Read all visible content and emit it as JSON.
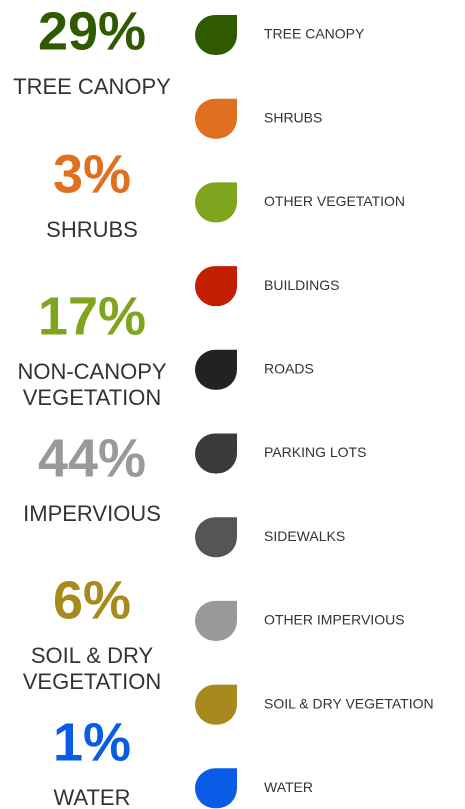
{
  "stats": [
    {
      "value": "29%",
      "label": [
        "TREE CANOPY"
      ],
      "color": "#2f5a00"
    },
    {
      "value": "3%",
      "label": [
        "SHRUBS"
      ],
      "color": "#e07020"
    },
    {
      "value": "17%",
      "label": [
        "NON-CANOPY",
        "VEGETATION"
      ],
      "color": "#7fa51e"
    },
    {
      "value": "44%",
      "label": [
        "IMPERVIOUS"
      ],
      "color": "#999999"
    },
    {
      "value": "6%",
      "label": [
        "SOIL & DRY",
        "VEGETATION"
      ],
      "color": "#a8891e"
    },
    {
      "value": "1%",
      "label": [
        "WATER"
      ],
      "color": "#0a5ce6"
    }
  ],
  "legend": [
    {
      "name": "TREE CANOPY",
      "color": "#2f5a00"
    },
    {
      "name": "SHRUBS",
      "color": "#e07020"
    },
    {
      "name": "OTHER VEGETATION",
      "color": "#7fa51e"
    },
    {
      "name": "BUILDINGS",
      "color": "#c41e00"
    },
    {
      "name": "ROADS",
      "color": "#222222"
    },
    {
      "name": "PARKING LOTS",
      "color": "#3a3a3a"
    },
    {
      "name": "SIDEWALKS",
      "color": "#555555"
    },
    {
      "name": "OTHER IMPERVIOUS",
      "color": "#999999"
    },
    {
      "name": "SOIL & DRY VEGETATION",
      "color": "#a8891e"
    },
    {
      "name": "WATER",
      "color": "#0a5ce6"
    }
  ]
}
